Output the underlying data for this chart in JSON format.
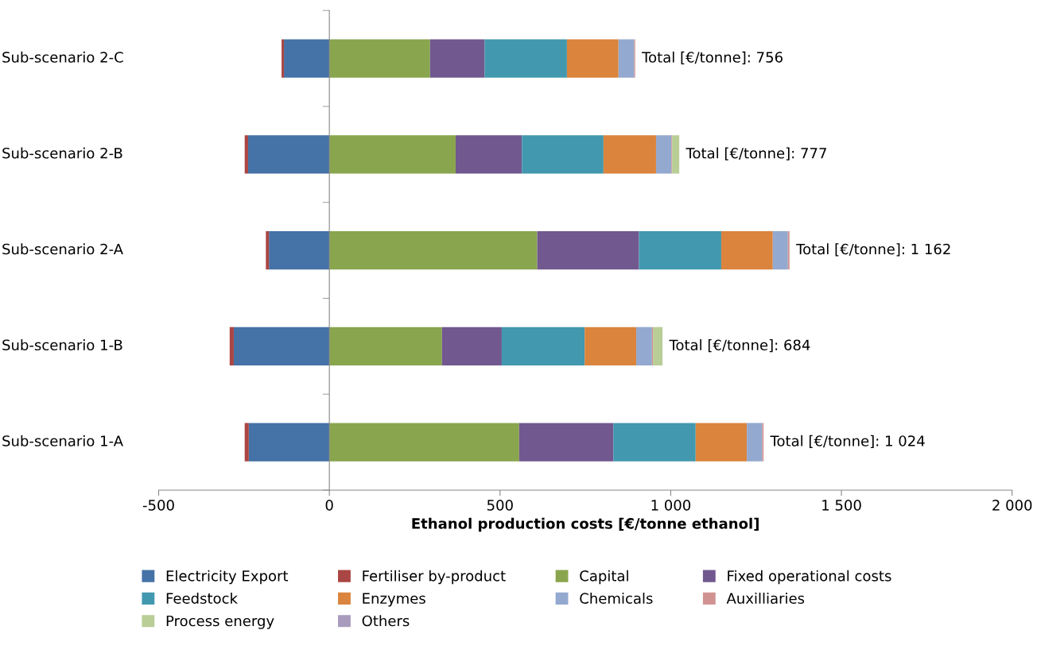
{
  "chart_data": {
    "type": "bar",
    "orientation": "horizontal",
    "stacked": true,
    "xlabel": "Ethanol production costs [€/tonne ethanol]",
    "categories": [
      "Sub-scenario 2-C",
      "Sub-scenario 2-B",
      "Sub-scenario 2-A",
      "Sub-scenario 1-B",
      "Sub-scenario 1-A"
    ],
    "series": [
      {
        "name": "Electricity Export",
        "color": "#4572a7",
        "values": [
          -133,
          -238,
          -177,
          -280,
          -236
        ]
      },
      {
        "name": "Fertiliser by-product",
        "color": "#aa4643",
        "values": [
          -7,
          -10,
          -9,
          -12,
          -12
        ]
      },
      {
        "name": "Capital",
        "color": "#89a54e",
        "values": [
          295,
          370,
          609,
          330,
          556
        ]
      },
      {
        "name": "Fixed operational costs",
        "color": "#71588f",
        "values": [
          160,
          194,
          298,
          175,
          276
        ]
      },
      {
        "name": "Feedstock",
        "color": "#4198af",
        "values": [
          241,
          239,
          241,
          243,
          241
        ]
      },
      {
        "name": "Enzymes",
        "color": "#db843d",
        "values": [
          151,
          154,
          151,
          151,
          150
        ]
      },
      {
        "name": "Chemicals",
        "color": "#93a9cf",
        "values": [
          46,
          45,
          44,
          46,
          45
        ]
      },
      {
        "name": "Auxilliaries",
        "color": "#d19392",
        "values": [
          3,
          2,
          5,
          3,
          4
        ]
      },
      {
        "name": "Process energy",
        "color": "#b9cd96",
        "values": [
          0,
          21,
          0,
          28,
          0
        ]
      },
      {
        "name": "Others",
        "color": "#a99bbd",
        "values": [
          0,
          0,
          0,
          0,
          0
        ]
      }
    ],
    "totals": [
      "Total [€/tonne]: 756",
      "Total [€/tonne]: 777",
      "Total [€/tonne]: 1 162",
      "Total [€/tonne]: 684",
      "Total [€/tonne]: 1 024"
    ],
    "xlim": [
      -500,
      2000
    ],
    "xticks": [
      -500,
      0,
      500,
      {
        "value": 1000,
        "label": "1 000"
      },
      {
        "value": 1500,
        "label": "1 500"
      },
      {
        "value": 2000,
        "label": "2 000"
      }
    ],
    "legend": "bottom"
  }
}
